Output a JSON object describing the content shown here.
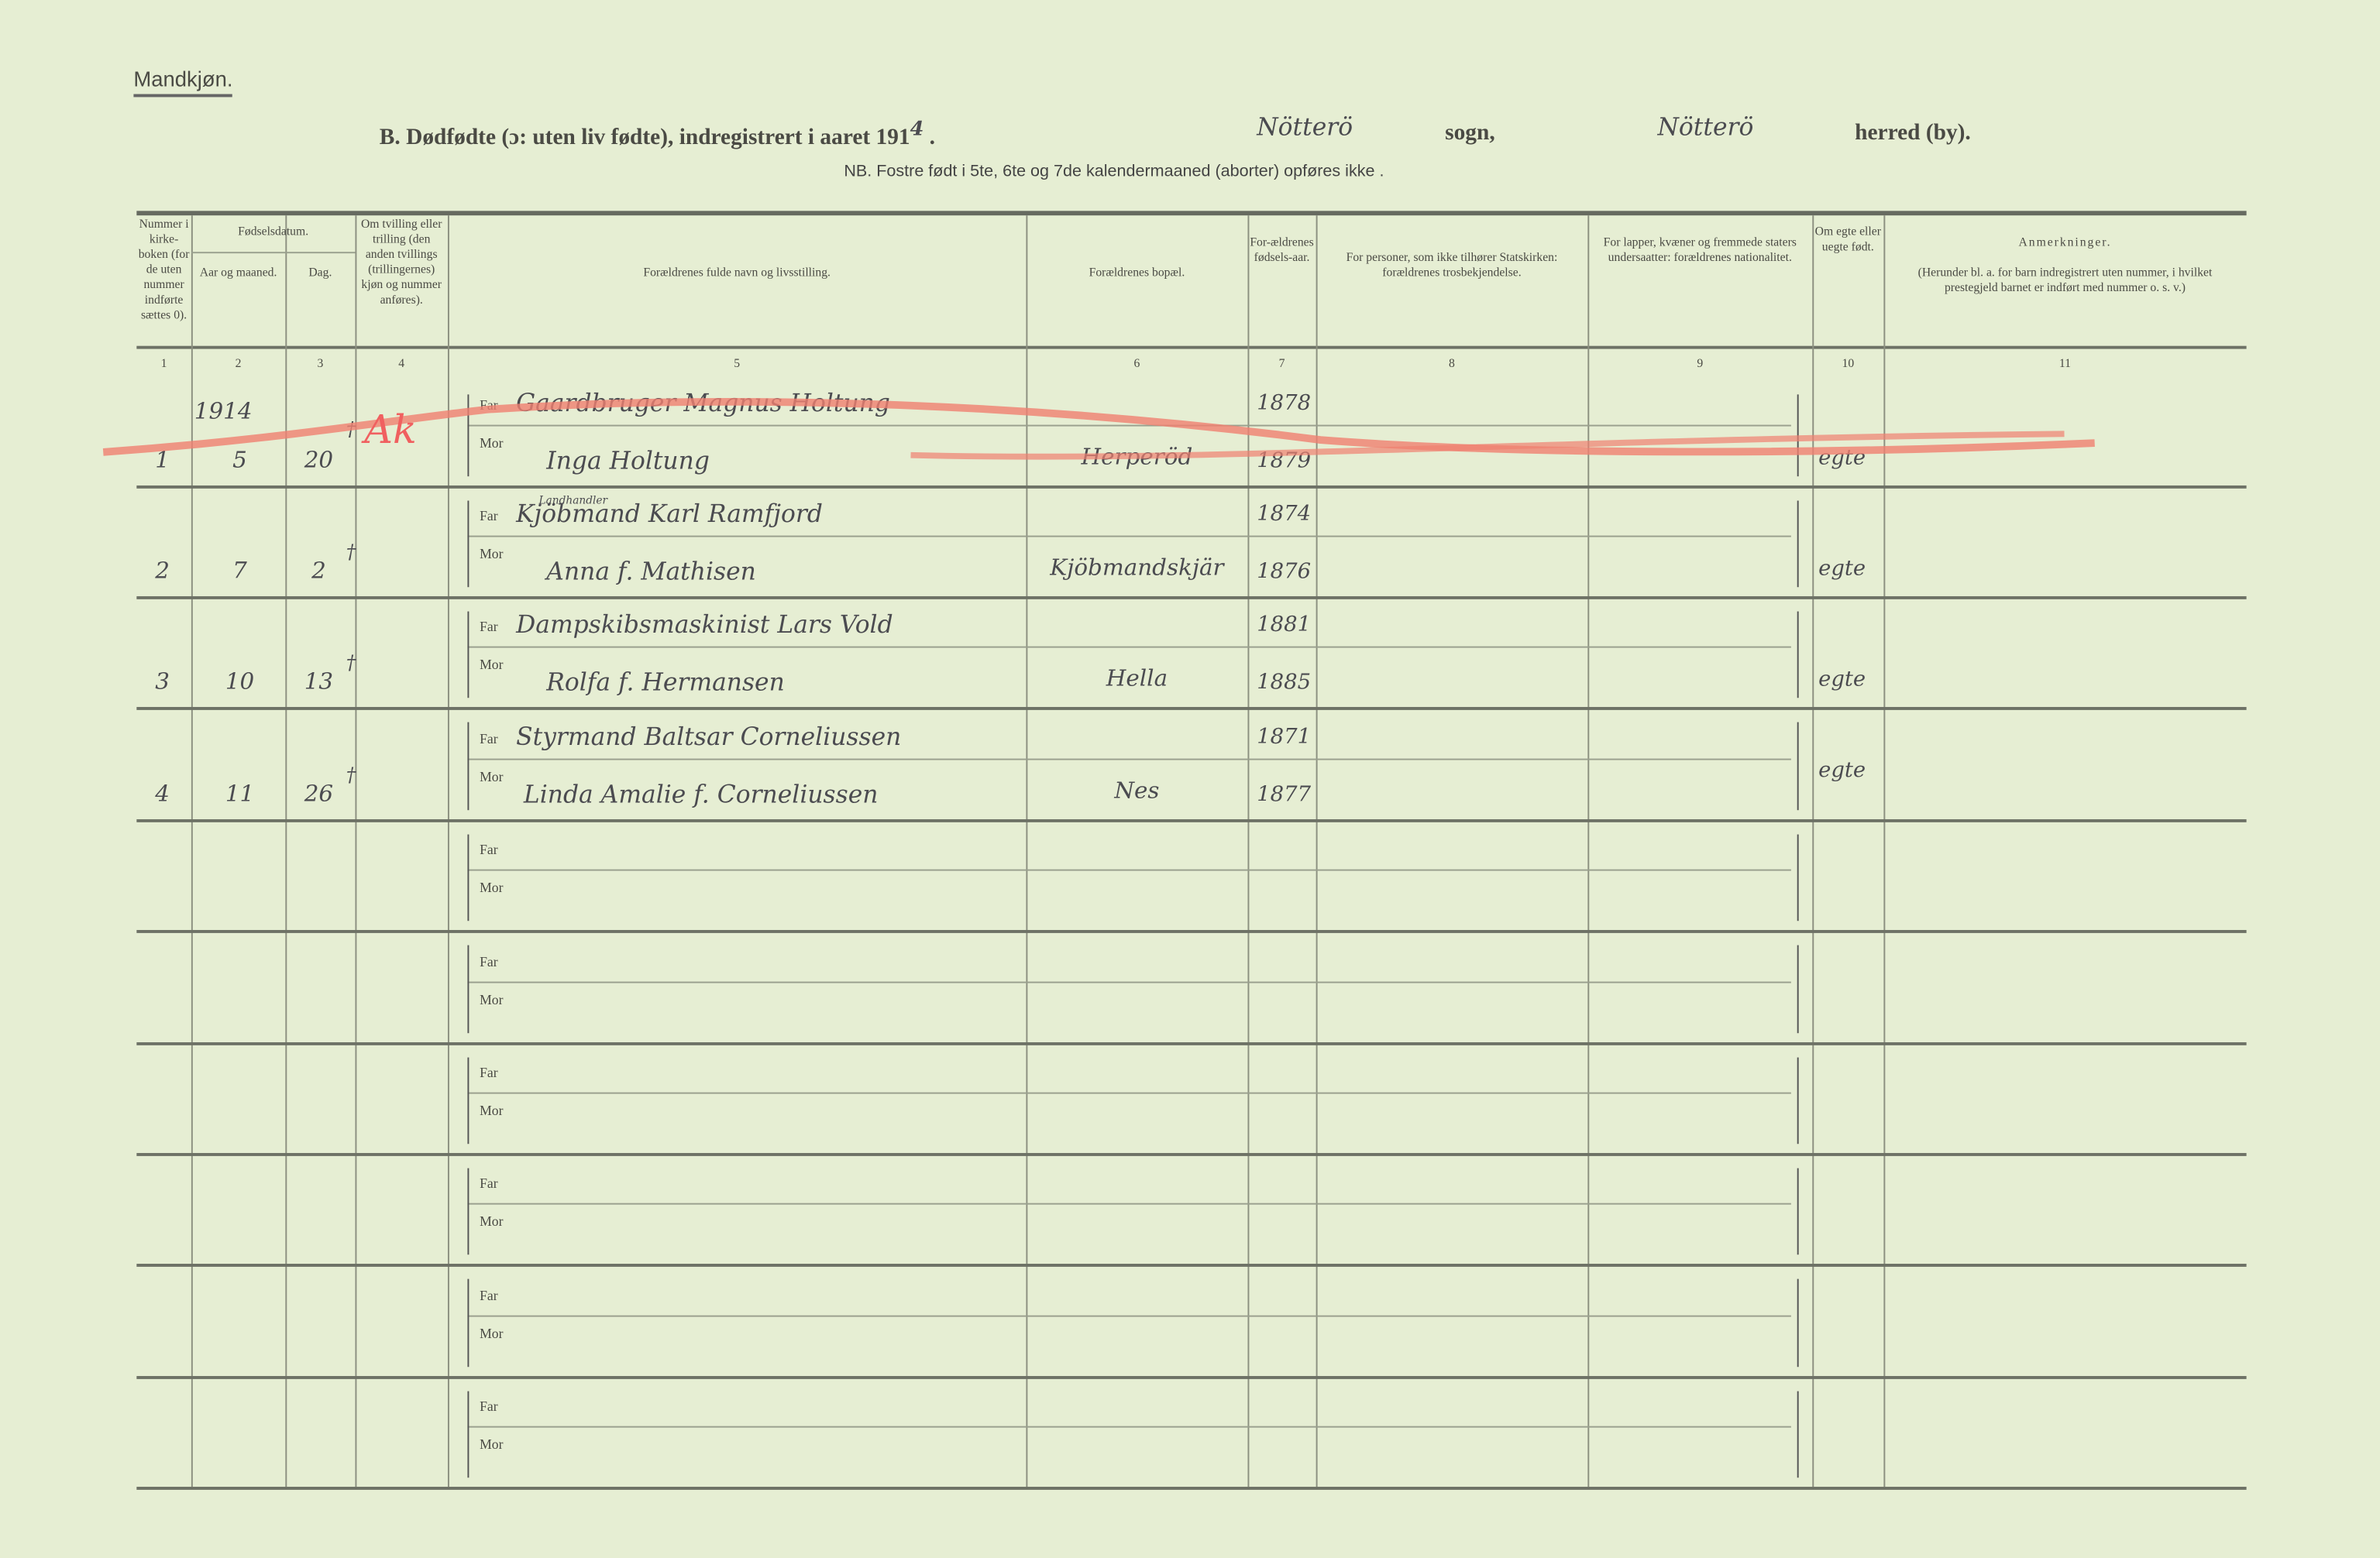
{
  "header": {
    "section_label": "Mandkjøn.",
    "title_prefix": "B.  Dødfødte (ɔ: uten liv fødte), indregistrert i aaret 191",
    "year_hand": "4",
    "sogn_hand": "Nötterö",
    "sogn_label": "sogn,",
    "herred_hand": "Nötterö",
    "herred_label": "herred (by).",
    "note": "NB.  Fostre født i 5te, 6te og 7de kalendermaaned (aborter) opføres ikke ."
  },
  "columns": [
    {
      "num": "1",
      "label": "Nummer i kirke-boken (for de uten nummer indførte sættes 0)."
    },
    {
      "num": "2",
      "label": "Aar og maaned.",
      "group": "Fødselsdatum."
    },
    {
      "num": "3",
      "label": "Dag."
    },
    {
      "num": "4",
      "label": "Om tvilling eller trilling (den anden tvillings (trillingernes) kjøn og nummer anføres)."
    },
    {
      "num": "5",
      "label": "Forældrenes fulde navn og livsstilling."
    },
    {
      "num": "6",
      "label": "Forældrenes bopæl."
    },
    {
      "num": "7",
      "label": "For-ældrenes fødsels-aar."
    },
    {
      "num": "8",
      "label": "For personer, som ikke tilhører Statskirken: forældrenes trosbekjendelse."
    },
    {
      "num": "9",
      "label": "For lapper, kvæner og fremmede staters undersaatter: forældrenes nationalitet."
    },
    {
      "num": "10",
      "label": "Om egte eller uegte født."
    },
    {
      "num": "11",
      "label": "Anmerkninger.",
      "sub": "(Herunder bl. a. for barn indregistrert uten nummer, i hvilket prestegjeld barnet er indført med nummer o. s. v.)"
    }
  ],
  "labels": {
    "far": "Far",
    "mor": "Mor"
  },
  "red_mark": "Ak",
  "rows": [
    {
      "nr": "1",
      "year": "1914",
      "month": "5",
      "day": "20",
      "twin": "†",
      "far": "Gaardbruger Magnus Holtung",
      "mor": "Inga Holtung",
      "bopael": "Herperöd",
      "far_year": "1878",
      "mor_year": "1879",
      "egte": "egte",
      "cancelled": true
    },
    {
      "nr": "2",
      "year": "",
      "month": "7",
      "day": "2",
      "twin": "†",
      "far_title": "Landhandler",
      "far": "Kjöbmand Karl Ramfjord",
      "mor": "Anna f. Mathisen",
      "bopael": "Kjöbmandskjär",
      "far_year": "1874",
      "mor_year": "1876",
      "egte": "egte"
    },
    {
      "nr": "3",
      "year": "",
      "month": "10",
      "day": "13",
      "twin": "†",
      "far": "Dampskibsmaskinist Lars Vold",
      "mor": "Rolfa f. Hermansen",
      "bopael": "Hella",
      "far_year": "1881",
      "mor_year": "1885",
      "egte": "egte"
    },
    {
      "nr": "4",
      "year": "",
      "month": "11",
      "day": "26",
      "twin": "†",
      "far": "Styrmand Baltsar Corneliussen",
      "mor": "Linda Amalie f. Corneliussen",
      "bopael": "Nes",
      "far_year": "1871",
      "mor_year": "1877",
      "egte": "egte"
    },
    {},
    {},
    {},
    {},
    {},
    {}
  ]
}
